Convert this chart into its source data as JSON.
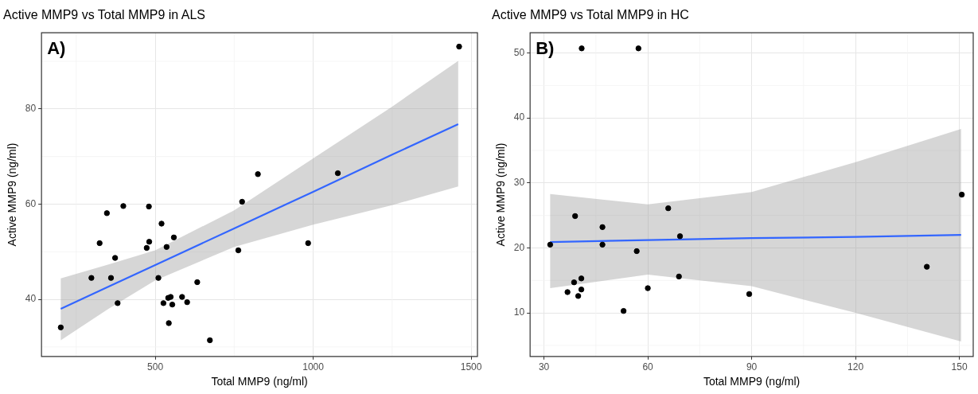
{
  "chart_data": [
    {
      "type": "scatter",
      "title": "Active MMP9 vs Total MMP9 in ALS",
      "xlabel": "Total MMP9 (ng/ml)",
      "ylabel": "Active MMP9 (ng/ml)",
      "xlim": [
        140,
        1520
      ],
      "xticks": [
        500,
        1000,
        1500
      ],
      "ylim": [
        28,
        96
      ],
      "yticks": [
        40,
        60,
        80
      ],
      "grid": true,
      "legend": false,
      "annotations": [
        "A)"
      ],
      "series": [
        {
          "color": "#000000",
          "x": [
            201,
            298,
            324,
            347,
            360,
            373,
            381,
            399,
            473,
            480,
            481,
            510,
            520,
            526,
            536,
            541,
            543,
            549,
            554,
            559,
            585,
            601,
            633,
            673,
            763,
            775,
            825,
            984,
            1078,
            1462
          ],
          "values": [
            34.1,
            44.5,
            51.8,
            58.1,
            44.5,
            48.7,
            39.2,
            59.6,
            50.8,
            59.5,
            52.1,
            44.5,
            55.9,
            39.2,
            51.0,
            40.3,
            35.0,
            40.5,
            38.9,
            53.0,
            40.5,
            39.4,
            43.6,
            31.4,
            50.3,
            60.5,
            66.3,
            51.8,
            66.5,
            93.1
          ]
        },
        {
          "type": "line",
          "color": "#3366ff",
          "x": [
            201,
            350,
            500,
            750,
            1000,
            1250,
            1459
          ],
          "values": [
            38.0,
            42.6,
            47.2,
            54.9,
            62.6,
            70.4,
            76.8
          ],
          "lower": [
            31.4,
            37.9,
            44.0,
            51.0,
            55.7,
            59.8,
            63.7
          ],
          "upper": [
            44.4,
            47.3,
            50.3,
            58.7,
            69.6,
            80.5,
            90.1
          ]
        }
      ]
    },
    {
      "type": "scatter",
      "title": "Active MMP9 vs Total MMP9 in HC",
      "xlabel": "Total MMP9 (ng/ml)",
      "ylabel": "Active MMP9 (ng/ml)",
      "xlim": [
        26,
        154
      ],
      "xticks": [
        30,
        60,
        90,
        120,
        150
      ],
      "ylim": [
        3.3,
        53.1
      ],
      "yticks": [
        10,
        20,
        30,
        40,
        50
      ],
      "grid": true,
      "legend": false,
      "annotations": [
        "B)"
      ],
      "series": [
        {
          "color": "#000000",
          "x": [
            31.8,
            36.8,
            38.7,
            39.0,
            39.9,
            40.8,
            40.8,
            40.9,
            46.9,
            46.9,
            53.0,
            56.8,
            57.3,
            60.0,
            65.9,
            69.0,
            69.3,
            89.3,
            140.6,
            150.7
          ],
          "values": [
            20.5,
            13.2,
            14.7,
            24.9,
            12.6,
            15.3,
            13.6,
            50.7,
            23.2,
            20.5,
            10.3,
            19.5,
            50.7,
            13.8,
            26.1,
            15.6,
            21.8,
            12.9,
            17.1,
            28.2
          ]
        },
        {
          "type": "line",
          "color": "#3366ff",
          "x": [
            31.8,
            60,
            90,
            120,
            150.5
          ],
          "values": [
            20.9,
            21.2,
            21.5,
            21.7,
            22.0
          ],
          "lower": [
            13.8,
            15.9,
            14.1,
            10.0,
            5.6
          ],
          "upper": [
            28.3,
            26.7,
            28.6,
            33.2,
            38.3
          ]
        }
      ]
    }
  ]
}
